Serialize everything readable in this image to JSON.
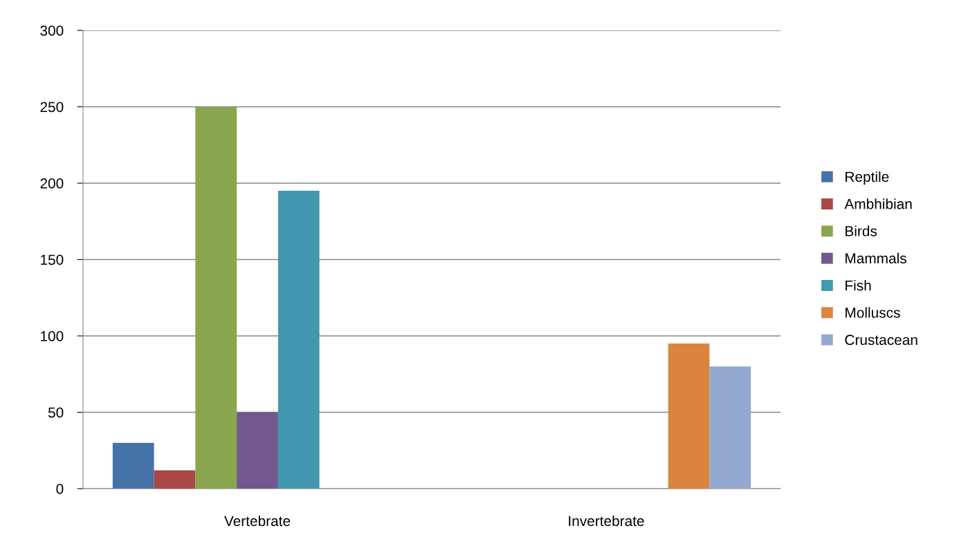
{
  "chart_data": {
    "type": "bar",
    "categories": [
      "Vertebrate",
      "Invertebrate"
    ],
    "series": [
      {
        "name": "Reptile",
        "color": "#4572a7",
        "values": [
          30,
          null
        ]
      },
      {
        "name": "Ambhibian",
        "color": "#aa4643",
        "values": [
          12,
          null
        ]
      },
      {
        "name": "Birds",
        "color": "#89a54e",
        "values": [
          250,
          null
        ]
      },
      {
        "name": "Mammals",
        "color": "#71588f",
        "values": [
          50,
          null
        ]
      },
      {
        "name": "Fish",
        "color": "#4198af",
        "values": [
          195,
          null
        ]
      },
      {
        "name": "Molluscs",
        "color": "#db843d",
        "values": [
          null,
          95
        ]
      },
      {
        "name": "Crustacean",
        "color": "#93a9cf",
        "values": [
          null,
          80
        ]
      }
    ],
    "ylim": [
      0,
      300
    ],
    "yticks": [
      0,
      50,
      100,
      150,
      200,
      250,
      300
    ],
    "grid": "y",
    "legend": "right"
  }
}
